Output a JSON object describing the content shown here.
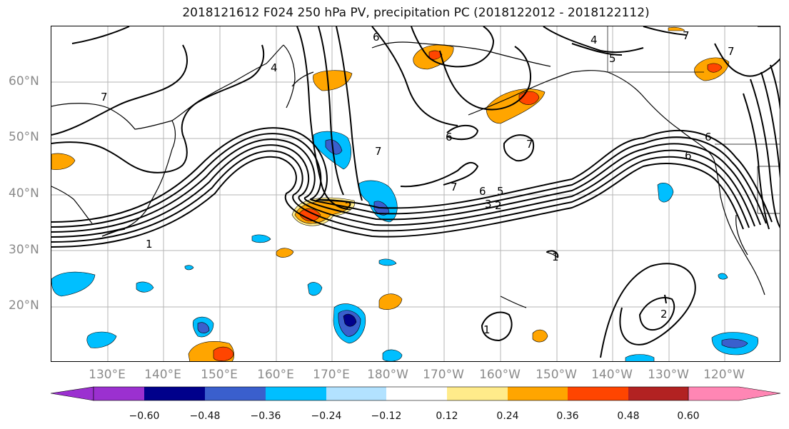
{
  "title": "2018121612 F024 250 hPa PV, precipitation PC (2018122012 - 2018122112)",
  "lat_labels": [
    "60°N",
    "50°N",
    "40°N",
    "30°N",
    "20°N"
  ],
  "lon_labels": [
    "130°E",
    "140°E",
    "150°E",
    "160°E",
    "170°E",
    "180°W",
    "170°W",
    "160°W",
    "150°W",
    "140°W",
    "130°W",
    "120°W"
  ],
  "contour_labels": [
    "1",
    "2",
    "3",
    "4",
    "5",
    "6",
    "7"
  ],
  "colorbar": {
    "colors": [
      "#9b30d0",
      "#00008b",
      "#3a5fcd",
      "#00bfff",
      "#b2e2ff",
      "#ffffff",
      "#ffeb8a",
      "#ffa500",
      "#ff4500",
      "#b22222",
      "#ff86b4"
    ],
    "tick_labels": [
      "−0.60",
      "−0.48",
      "−0.36",
      "−0.24",
      "−0.12",
      "0.12",
      "0.24",
      "0.36",
      "0.48",
      "0.60"
    ]
  }
}
